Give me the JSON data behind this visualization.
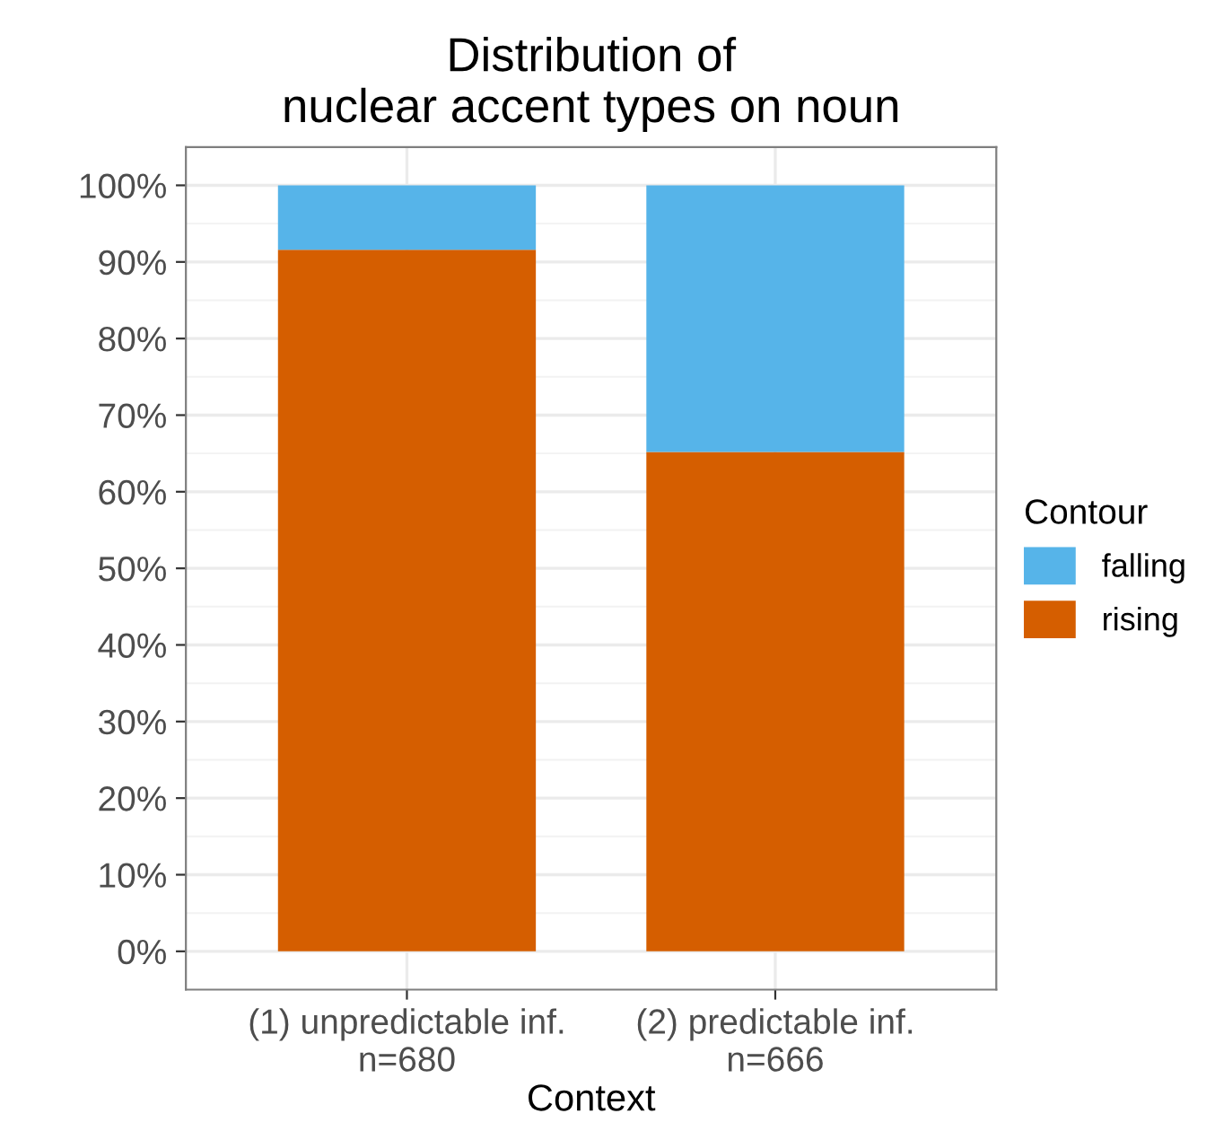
{
  "chart_data": {
    "type": "bar",
    "title": "Distribution of\nnuclear accent types on noun",
    "xlabel": "Context",
    "legend_title": "Contour",
    "categories": [
      "(1) unpredictable inf.\nn=680",
      "(2) predictable inf.\nn=666"
    ],
    "stacked": true,
    "series": [
      {
        "name": "rising",
        "color": "#d55e00",
        "values": [
          91.6,
          65.2
        ]
      },
      {
        "name": "falling",
        "color": "#56b4e9",
        "values": [
          8.4,
          34.8
        ]
      }
    ],
    "ylim": [
      -5,
      105
    ],
    "yticks": [
      {
        "value": 0,
        "label": "0%"
      },
      {
        "value": 10,
        "label": "10%"
      },
      {
        "value": 20,
        "label": "20%"
      },
      {
        "value": 30,
        "label": "30%"
      },
      {
        "value": 40,
        "label": "40%"
      },
      {
        "value": 50,
        "label": "50%"
      },
      {
        "value": 60,
        "label": "60%"
      },
      {
        "value": 70,
        "label": "70%"
      },
      {
        "value": 80,
        "label": "80%"
      },
      {
        "value": 90,
        "label": "90%"
      },
      {
        "value": 100,
        "label": "100%"
      }
    ],
    "grid": true,
    "legend": "right"
  }
}
